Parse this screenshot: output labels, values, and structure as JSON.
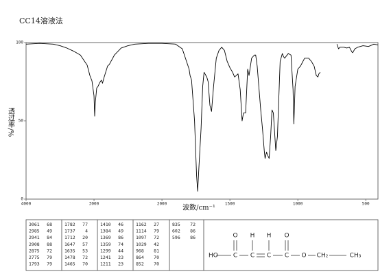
{
  "chart_data": {
    "type": "line",
    "title": "CC14溶液法",
    "xlabel": "波数/cm⁻¹",
    "ylabel": "透过率/%",
    "xlim": [
      4000,
      410
    ],
    "xticks": [
      4000,
      3000,
      2000,
      1500,
      1000,
      500
    ],
    "x_scale_change": 2000,
    "ylim": [
      0,
      100
    ],
    "yticks": [
      0,
      50,
      100
    ],
    "color": "#000000",
    "x": [
      4000,
      3800,
      3600,
      3500,
      3400,
      3300,
      3200,
      3100,
      3061,
      3030,
      3000,
      2990,
      2980,
      2960,
      2941,
      2920,
      2908,
      2890,
      2875,
      2850,
      2800,
      2775,
      2700,
      2600,
      2500,
      2400,
      2200,
      2000,
      1900,
      1850,
      1800,
      1793,
      1782,
      1760,
      1745,
      1737,
      1728,
      1712,
      1700,
      1690,
      1670,
      1660,
      1647,
      1635,
      1620,
      1600,
      1580,
      1560,
      1540,
      1520,
      1500,
      1480,
      1465,
      1440,
      1424,
      1410,
      1400,
      1384,
      1369,
      1359,
      1340,
      1320,
      1310,
      1299,
      1273,
      1260,
      1247,
      1241,
      1230,
      1222,
      1211,
      1200,
      1190,
      1180,
      1162,
      1150,
      1130,
      1114,
      1105,
      1097,
      1070,
      1050,
      1035,
      1029,
      1020,
      1000,
      980,
      968,
      950,
      920,
      900,
      880,
      864,
      852,
      845,
      835,
      770,
      712,
      700,
      690,
      660,
      640,
      620,
      602,
      596,
      580,
      560,
      520,
      480,
      440,
      410
    ],
    "values": [
      99,
      99.5,
      99,
      98,
      96.5,
      94.5,
      92,
      85.5,
      79,
      75.5,
      66,
      53,
      62,
      71,
      72,
      74,
      75,
      76,
      74,
      78,
      85,
      86,
      92,
      96.5,
      98,
      99,
      99.5,
      99.5,
      99,
      96,
      83,
      79,
      76,
      50,
      15,
      5,
      20,
      45,
      72,
      81,
      78,
      75,
      60,
      56,
      72,
      90,
      95,
      97,
      95,
      88,
      84,
      81,
      78,
      80,
      70,
      50,
      55,
      55,
      83,
      79,
      90,
      92,
      92,
      85,
      57,
      45,
      31,
      26,
      30,
      28,
      26,
      40,
      57,
      55,
      31,
      40,
      88,
      93,
      91,
      90,
      93,
      92,
      70,
      48,
      72,
      83,
      85,
      87,
      90,
      90,
      88,
      85,
      79,
      78,
      80,
      81,
      null,
      99,
      96,
      97,
      97,
      96.5,
      97,
      94,
      93.5,
      96,
      97,
      98,
      97.5,
      99,
      98.5
    ]
  },
  "peak_table": {
    "columns": [
      [
        [
          3061,
          68
        ],
        [
          2985,
          49
        ],
        [
          2941,
          84
        ],
        [
          2908,
          88
        ],
        [
          2875,
          72
        ],
        [
          2775,
          79
        ],
        [
          1793,
          79
        ]
      ],
      [
        [
          1782,
          77
        ],
        [
          1737,
          4
        ],
        [
          1712,
          20
        ],
        [
          1647,
          57
        ],
        [
          1635,
          53
        ],
        [
          1478,
          72
        ],
        [
          1465,
          70
        ]
      ],
      [
        [
          1410,
          46
        ],
        [
          1384,
          49
        ],
        [
          1369,
          86
        ],
        [
          1359,
          74
        ],
        [
          1299,
          44
        ],
        [
          1241,
          23
        ],
        [
          1211,
          23
        ]
      ],
      [
        [
          1162,
          27
        ],
        [
          1114,
          79
        ],
        [
          1097,
          72
        ],
        [
          1029,
          42
        ],
        [
          968,
          81
        ],
        [
          864,
          70
        ],
        [
          852,
          70
        ]
      ],
      [
        [
          835,
          72
        ],
        [
          602,
          86
        ],
        [
          596,
          86
        ]
      ]
    ]
  },
  "structure": {
    "main": [
      "HO",
      "C",
      "C",
      "C",
      "C",
      "O",
      "CH₂",
      "CH₃"
    ],
    "top": [
      "O",
      "H",
      "H",
      "O"
    ]
  }
}
